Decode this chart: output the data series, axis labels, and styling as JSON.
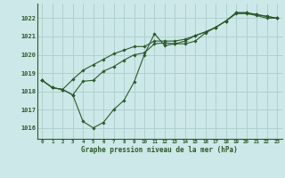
{
  "title": "Graphe pression niveau de la mer (hPa)",
  "bg_color": "#cde8e8",
  "grid_color": "#b0d0d0",
  "line_color": "#2a5a2a",
  "marker_color": "#2a5a2a",
  "xlim": [
    -0.5,
    23.5
  ],
  "ylim": [
    1015.4,
    1022.8
  ],
  "yticks": [
    1016,
    1017,
    1018,
    1019,
    1020,
    1021,
    1022
  ],
  "xticks": [
    0,
    1,
    2,
    3,
    4,
    5,
    6,
    7,
    8,
    9,
    10,
    11,
    12,
    13,
    14,
    15,
    16,
    17,
    18,
    19,
    20,
    21,
    22,
    23
  ],
  "series": [
    [
      1018.6,
      1018.2,
      1018.1,
      1017.8,
      1016.35,
      1016.0,
      1016.3,
      1017.0,
      1017.5,
      1018.5,
      1020.0,
      1021.15,
      1020.5,
      1020.6,
      1020.6,
      1020.75,
      1021.2,
      1021.5,
      1021.85,
      1022.25,
      1022.25,
      1022.15,
      1022.0,
      1022.0
    ],
    [
      1018.6,
      1018.2,
      1018.1,
      1017.8,
      1018.55,
      1018.6,
      1019.1,
      1019.35,
      1019.7,
      1020.0,
      1020.1,
      1020.6,
      1020.65,
      1020.6,
      1020.75,
      1021.05,
      1021.25,
      1021.5,
      1021.85,
      1022.3,
      1022.3,
      1022.2,
      1022.1,
      1022.0
    ],
    [
      1018.6,
      1018.2,
      1018.1,
      1018.65,
      1019.15,
      1019.45,
      1019.75,
      1020.05,
      1020.25,
      1020.45,
      1020.45,
      1020.75,
      1020.75,
      1020.75,
      1020.85,
      1021.05,
      1021.25,
      1021.5,
      1021.85,
      1022.3,
      1022.3,
      1022.2,
      1022.1,
      1022.0
    ]
  ]
}
